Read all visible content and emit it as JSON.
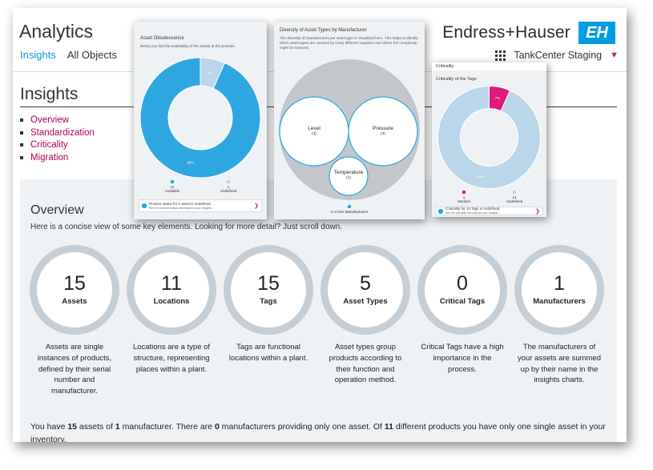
{
  "header": {
    "app_title": "Analytics",
    "tabs": [
      {
        "label": "Insights",
        "active": true
      },
      {
        "label": "All Objects",
        "active": false
      }
    ],
    "brand_name": "Endress+Hauser",
    "brand_logo": "EH",
    "app_name": "TankCenter Staging",
    "icons": [
      "app-grid-icon",
      "chevron-down-icon"
    ]
  },
  "page": {
    "heading": "Insights",
    "toc": [
      "Overview",
      "Standardization",
      "Criticality",
      "Migration"
    ]
  },
  "overview": {
    "title": "Overview",
    "intro": "Here is a concise view of some key elements. Looking for more detail? Just scroll down.",
    "kpis": [
      {
        "value": "15",
        "label": "Assets",
        "description": "Assets are single instances of products, defined by their serial number and manufacturer."
      },
      {
        "value": "11",
        "label": "Locations",
        "description": "Locations are a type of structure, representing places within a plant."
      },
      {
        "value": "15",
        "label": "Tags",
        "description": "Tags are functional locations within a plant."
      },
      {
        "value": "5",
        "label": "Asset Types",
        "description": "Asset types group products according to their function and operation method."
      },
      {
        "value": "0",
        "label": "Critical Tags",
        "description": "Critical Tags have a high importance in the process."
      },
      {
        "value": "1",
        "label": "Manufacturers",
        "description": "The manufacturers of your assets are summed up by their name in the insights charts."
      }
    ],
    "summary": {
      "p1": "You have ",
      "assets": "15",
      "p2": " assets of ",
      "manufacturers": "1",
      "p3": " manufacturer. There are ",
      "single": "0",
      "p4": " manufacturers providing only one asset. Of ",
      "products": "11",
      "p5": " different products you have only one single asset in your inventory."
    }
  },
  "cards": {
    "obsolescence": {
      "title": "Asset Obsolescence",
      "subtitle": "Below you find the availability of the assets at the provider.",
      "legend": [
        {
          "value": "14",
          "label": "Available",
          "color": "#2ea7e0"
        },
        {
          "value": "1",
          "label": "Undefined",
          "color": "#b9d6ea"
        }
      ],
      "notice": "Product status for 1 asset is undefined.",
      "notice_sub": "See the product status and improve your insights."
    },
    "diversity": {
      "title": "Diversity of Asset Types by Manufacturer",
      "description": "The diversity of manufacturers per asset type is visualized here. This helps to identify which asset types are covered by many different suppliers and where the complexity might be reduced.",
      "bubbles": [
        {
          "label": "Level",
          "value": "(3)"
        },
        {
          "label": "Pressure",
          "value": "(3)"
        },
        {
          "label": "Temperature",
          "value": "(1)"
        }
      ],
      "legend": "3 or less Manufacturers",
      "legend_color": "#2ea7e0"
    },
    "criticality": {
      "window_title": "Criticality",
      "title": "Criticality of the Tags",
      "legend": [
        {
          "value": "1",
          "label": "Medium",
          "color": "#e0197d"
        },
        {
          "value": "14",
          "label": "Undefined",
          "color": "#b9d6ea"
        }
      ],
      "notice": "Criticality for 14 Tags is undefined.",
      "notice_sub": "See the criticality and improve your insights."
    }
  },
  "chart_data": [
    {
      "type": "pie",
      "title": "Asset Obsolescence",
      "categories": [
        "Available",
        "Undefined"
      ],
      "values": [
        14,
        1
      ],
      "data_labels": [
        "93%",
        "7%"
      ],
      "colors": [
        "#2ea7e0",
        "#b9d6ea"
      ]
    },
    {
      "type": "pie",
      "title": "Criticality of the Tags",
      "categories": [
        "Medium",
        "Undefined"
      ],
      "values": [
        1,
        14
      ],
      "data_labels": [
        "7%",
        "93%"
      ],
      "colors": [
        "#e0197d",
        "#b9d6ea"
      ]
    }
  ]
}
